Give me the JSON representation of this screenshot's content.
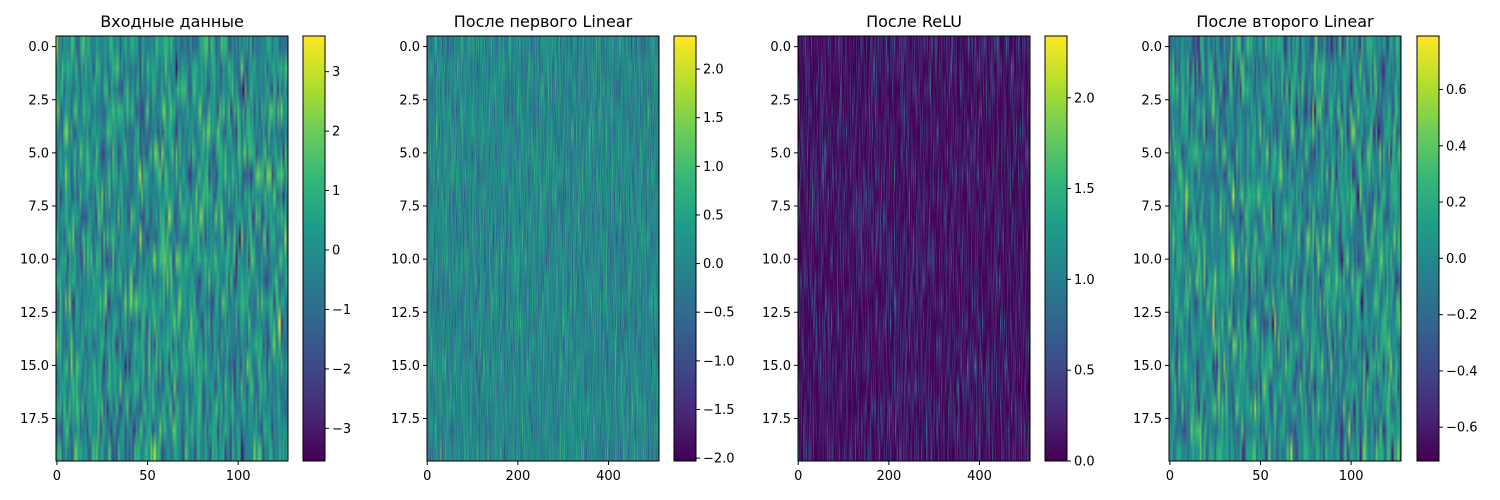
{
  "chart_data": [
    {
      "type": "heatmap",
      "title": "Входные данные",
      "rows": 20,
      "cols": 128,
      "cmap": "viridis",
      "vmin": -3.55,
      "vmax": 3.6,
      "yticks": [
        "0.0",
        "2.5",
        "5.0",
        "7.5",
        "10.0",
        "12.5",
        "15.0",
        "17.5"
      ],
      "xticks": [
        "0",
        "50",
        "100"
      ],
      "xtick_values": [
        0,
        50,
        100
      ],
      "cbar_ticks": [
        "−3",
        "−2",
        "−1",
        "0",
        "1",
        "2",
        "3"
      ],
      "cbar_values": [
        -3,
        -2,
        -1,
        0,
        1,
        2,
        3
      ],
      "value_std": 1.0,
      "relu": false
    },
    {
      "type": "heatmap",
      "title": "После первого Linear",
      "rows": 20,
      "cols": 512,
      "cmap": "viridis",
      "vmin": -2.03,
      "vmax": 2.34,
      "yticks": [
        "0.0",
        "2.5",
        "5.0",
        "7.5",
        "10.0",
        "12.5",
        "15.0",
        "17.5"
      ],
      "xticks": [
        "0",
        "200",
        "400"
      ],
      "xtick_values": [
        0,
        200,
        400
      ],
      "cbar_ticks": [
        "−2.0",
        "−1.5",
        "−1.0",
        "−0.5",
        "0.0",
        "0.5",
        "1.0",
        "1.5",
        "2.0"
      ],
      "cbar_values": [
        -2,
        -1.5,
        -1,
        -0.5,
        0,
        0.5,
        1,
        1.5,
        2
      ],
      "value_std": 0.45,
      "relu": false
    },
    {
      "type": "heatmap",
      "title": "После ReLU",
      "rows": 20,
      "cols": 512,
      "cmap": "viridis",
      "vmin": 0.0,
      "vmax": 2.34,
      "yticks": [
        "0.0",
        "2.5",
        "5.0",
        "7.5",
        "10.0",
        "12.5",
        "15.0",
        "17.5"
      ],
      "xticks": [
        "0",
        "200",
        "400"
      ],
      "xtick_values": [
        0,
        200,
        400
      ],
      "cbar_ticks": [
        "0.0",
        "0.5",
        "1.0",
        "1.5",
        "2.0"
      ],
      "cbar_values": [
        0,
        0.5,
        1,
        1.5,
        2
      ],
      "value_std": 0.45,
      "relu": true
    },
    {
      "type": "heatmap",
      "title": "После второго Linear",
      "rows": 20,
      "cols": 128,
      "cmap": "viridis",
      "vmin": -0.72,
      "vmax": 0.79,
      "yticks": [
        "0.0",
        "2.5",
        "5.0",
        "7.5",
        "10.0",
        "12.5",
        "15.0",
        "17.5"
      ],
      "xticks": [
        "0",
        "50",
        "100"
      ],
      "xtick_values": [
        0,
        50,
        100
      ],
      "cbar_ticks": [
        "−0.6",
        "−0.4",
        "−0.2",
        "0.0",
        "0.2",
        "0.4",
        "0.6"
      ],
      "cbar_values": [
        -0.6,
        -0.4,
        -0.2,
        0,
        0.2,
        0.4,
        0.6
      ],
      "value_std": 0.22,
      "relu": false
    }
  ]
}
